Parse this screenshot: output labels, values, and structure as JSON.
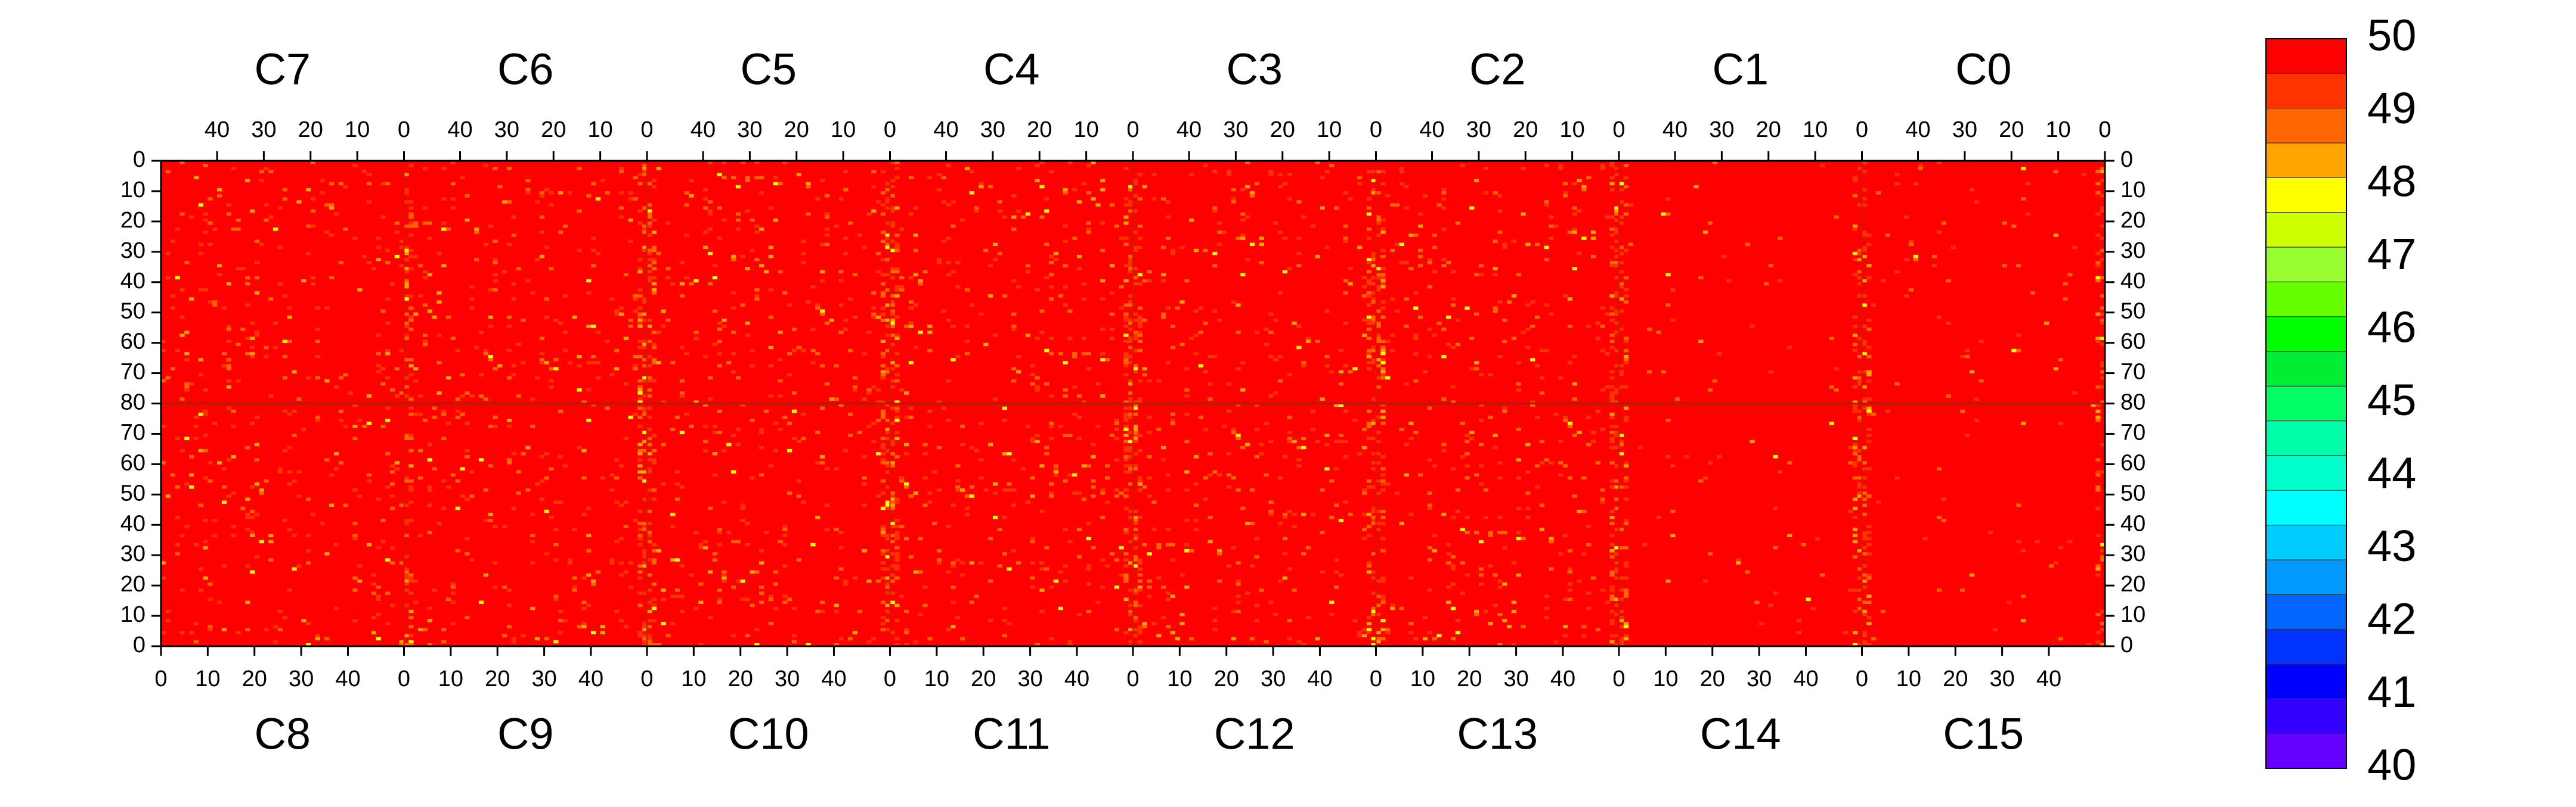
{
  "chart_data": {
    "type": "heatmap",
    "top_chips": [
      "C7",
      "C6",
      "C5",
      "C4",
      "C3",
      "C2",
      "C1",
      "C0"
    ],
    "bottom_chips": [
      "C8",
      "C9",
      "C10",
      "C11",
      "C12",
      "C13",
      "C14",
      "C15"
    ],
    "top_axis_ticks": [
      "40",
      "30",
      "20",
      "10",
      "0"
    ],
    "bottom_axis_ticks": [
      "0",
      "10",
      "20",
      "30",
      "40"
    ],
    "top_half_row_ticks": [
      "0",
      "10",
      "20",
      "30",
      "40",
      "50",
      "60",
      "70",
      "80"
    ],
    "bottom_half_row_ticks": [
      "70",
      "60",
      "50",
      "40",
      "30",
      "20",
      "10",
      "0"
    ],
    "columns_per_chip": 52,
    "rows_per_half": 80,
    "value_range": [
      40,
      50
    ],
    "dominant_value": 50,
    "colorbar": {
      "labels": [
        "50",
        "49",
        "48",
        "47",
        "46",
        "45",
        "44",
        "43",
        "42",
        "41",
        "40"
      ],
      "colors": [
        "#ff0000",
        "#ff3300",
        "#ff6600",
        "#ffa500",
        "#ffff00",
        "#ccff00",
        "#99ff33",
        "#66ff00",
        "#00ff00",
        "#00ee33",
        "#00ff66",
        "#00ffaa",
        "#00ffcc",
        "#00ffff",
        "#00ccff",
        "#0099ff",
        "#0066ff",
        "#0033ff",
        "#0000ff",
        "#3300ff",
        "#6600ff"
      ]
    },
    "noise_colors": [
      "#ff3300",
      "#ff6600",
      "#ffa500",
      "#ffff00"
    ],
    "background_color": "#ff0000"
  }
}
